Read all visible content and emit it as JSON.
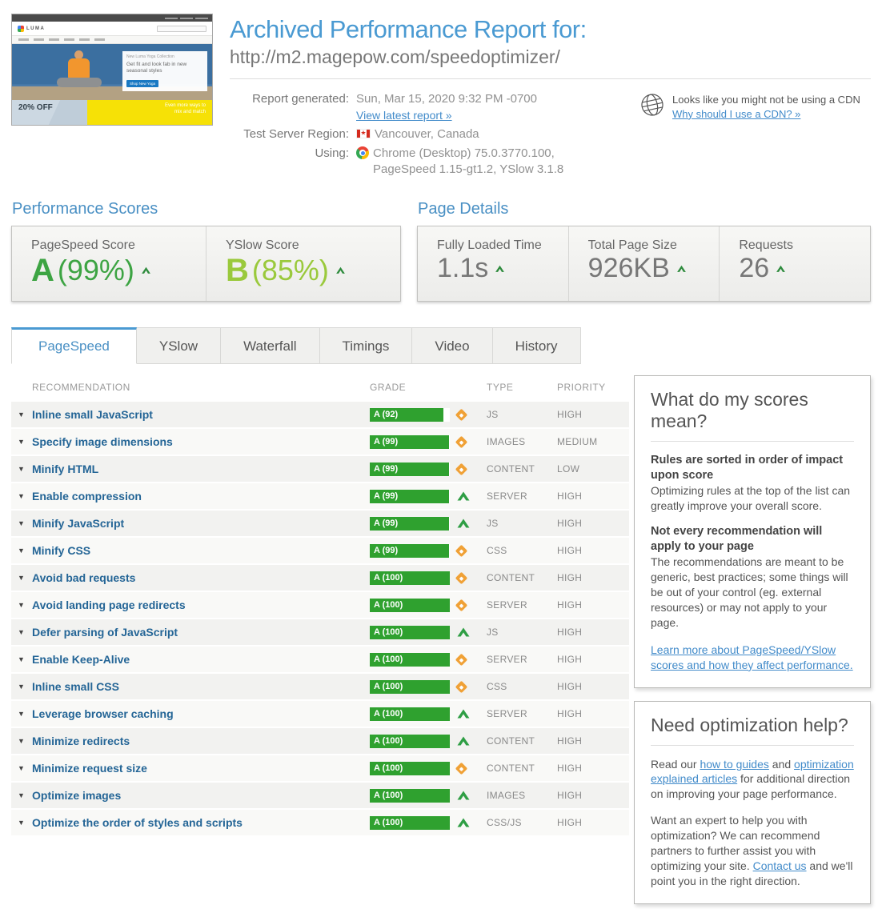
{
  "colors": {
    "accent_blue": "#4a9ad2",
    "link_blue": "#428bca",
    "bar_green": "#2fa12f",
    "warning_orange": "#f0a136",
    "pagespeed_green": "#3da443",
    "yslow_green": "#9ac93c"
  },
  "thumbnail": {
    "logo": "LUMA",
    "promo_label": "New Luma Yoga Collection",
    "promo_heading": "Get fit and look fab in new seasonal styles",
    "promo_button": "Shop New Yoga",
    "discount": "20% OFF",
    "banner": "Even more ways to mix and match"
  },
  "header": {
    "title": "Archived Performance Report for:",
    "url": "http://m2.magepow.com/speedoptimizer/",
    "report_generated_label": "Report generated:",
    "report_generated_value": "Sun, Mar 15, 2020 9:32 PM -0700",
    "view_latest_link": "View latest report »",
    "region_label": "Test Server Region:",
    "region_value": "Vancouver, Canada",
    "using_label": "Using:",
    "using_line1": "Chrome (Desktop) 75.0.3770.100,",
    "using_line2": "PageSpeed 1.15-gt1.2, YSlow 3.1.8",
    "cdn_text": "Looks like you might not be using a CDN",
    "cdn_link": "Why should I use a CDN? »"
  },
  "scores": {
    "section_title": "Performance Scores",
    "items": [
      {
        "label": "PageSpeed Score",
        "grade": "A",
        "value": "(99%)",
        "color": "#3da443"
      },
      {
        "label": "YSlow Score",
        "grade": "B",
        "value": "(85%)",
        "color": "#9ac93c"
      }
    ]
  },
  "page_details": {
    "section_title": "Page Details",
    "items": [
      {
        "label": "Fully Loaded Time",
        "value": "1.1s"
      },
      {
        "label": "Total Page Size",
        "value": "926KB"
      },
      {
        "label": "Requests",
        "value": "26"
      }
    ]
  },
  "tabs": [
    {
      "label": "PageSpeed",
      "active": true
    },
    {
      "label": "YSlow",
      "active": false
    },
    {
      "label": "Waterfall",
      "active": false
    },
    {
      "label": "Timings",
      "active": false
    },
    {
      "label": "Video",
      "active": false
    },
    {
      "label": "History",
      "active": false
    }
  ],
  "table": {
    "headers": [
      "RECOMMENDATION",
      "GRADE",
      "TYPE",
      "PRIORITY"
    ],
    "rows": [
      {
        "label": "Inline small JavaScript",
        "grade": "A (92)",
        "pct": 92,
        "icon": "diamond",
        "type": "JS",
        "priority": "HIGH"
      },
      {
        "label": "Specify image dimensions",
        "grade": "A (99)",
        "pct": 99,
        "icon": "diamond",
        "type": "IMAGES",
        "priority": "MEDIUM"
      },
      {
        "label": "Minify HTML",
        "grade": "A (99)",
        "pct": 99,
        "icon": "diamond",
        "type": "CONTENT",
        "priority": "LOW"
      },
      {
        "label": "Enable compression",
        "grade": "A (99)",
        "pct": 99,
        "icon": "arrow",
        "type": "SERVER",
        "priority": "HIGH"
      },
      {
        "label": "Minify JavaScript",
        "grade": "A (99)",
        "pct": 99,
        "icon": "arrow",
        "type": "JS",
        "priority": "HIGH"
      },
      {
        "label": "Minify CSS",
        "grade": "A (99)",
        "pct": 99,
        "icon": "diamond",
        "type": "CSS",
        "priority": "HIGH"
      },
      {
        "label": "Avoid bad requests",
        "grade": "A (100)",
        "pct": 100,
        "icon": "diamond",
        "type": "CONTENT",
        "priority": "HIGH"
      },
      {
        "label": "Avoid landing page redirects",
        "grade": "A (100)",
        "pct": 100,
        "icon": "diamond",
        "type": "SERVER",
        "priority": "HIGH"
      },
      {
        "label": "Defer parsing of JavaScript",
        "grade": "A (100)",
        "pct": 100,
        "icon": "arrow",
        "type": "JS",
        "priority": "HIGH"
      },
      {
        "label": "Enable Keep-Alive",
        "grade": "A (100)",
        "pct": 100,
        "icon": "diamond",
        "type": "SERVER",
        "priority": "HIGH"
      },
      {
        "label": "Inline small CSS",
        "grade": "A (100)",
        "pct": 100,
        "icon": "diamond",
        "type": "CSS",
        "priority": "HIGH"
      },
      {
        "label": "Leverage browser caching",
        "grade": "A (100)",
        "pct": 100,
        "icon": "arrow",
        "type": "SERVER",
        "priority": "HIGH"
      },
      {
        "label": "Minimize redirects",
        "grade": "A (100)",
        "pct": 100,
        "icon": "arrow",
        "type": "CONTENT",
        "priority": "HIGH"
      },
      {
        "label": "Minimize request size",
        "grade": "A (100)",
        "pct": 100,
        "icon": "diamond",
        "type": "CONTENT",
        "priority": "HIGH"
      },
      {
        "label": "Optimize images",
        "grade": "A (100)",
        "pct": 100,
        "icon": "arrow",
        "type": "IMAGES",
        "priority": "HIGH"
      },
      {
        "label": "Optimize the order of styles and scripts",
        "grade": "A (100)",
        "pct": 100,
        "icon": "arrow",
        "type": "CSS/JS",
        "priority": "HIGH"
      }
    ]
  },
  "sidebar": {
    "scores_box": {
      "title": "What do my scores mean?",
      "head1": "Rules are sorted in order of impact upon score",
      "p1": "Optimizing rules at the top of the list can greatly improve your overall score.",
      "head2": "Not every recommendation will apply to your page",
      "p2": "The recommendations are meant to be generic, best practices; some things will be out of your control (eg. external resources) or may not apply to your page.",
      "link": "Learn more about PageSpeed/YSlow scores and how they affect performance."
    },
    "help_box": {
      "title": "Need optimization help?",
      "p1a": "Read our ",
      "p1_link1": "how to guides",
      "p1b": " and ",
      "p1_link2": "optimization explained articles",
      "p1c": " for additional direction on improving your page performance.",
      "p2a": "Want an expert to help you with optimization? We can recommend partners to further assist you with optimizing your site. ",
      "p2_link": "Contact us",
      "p2b": " and we'll point you in the right direction."
    }
  }
}
